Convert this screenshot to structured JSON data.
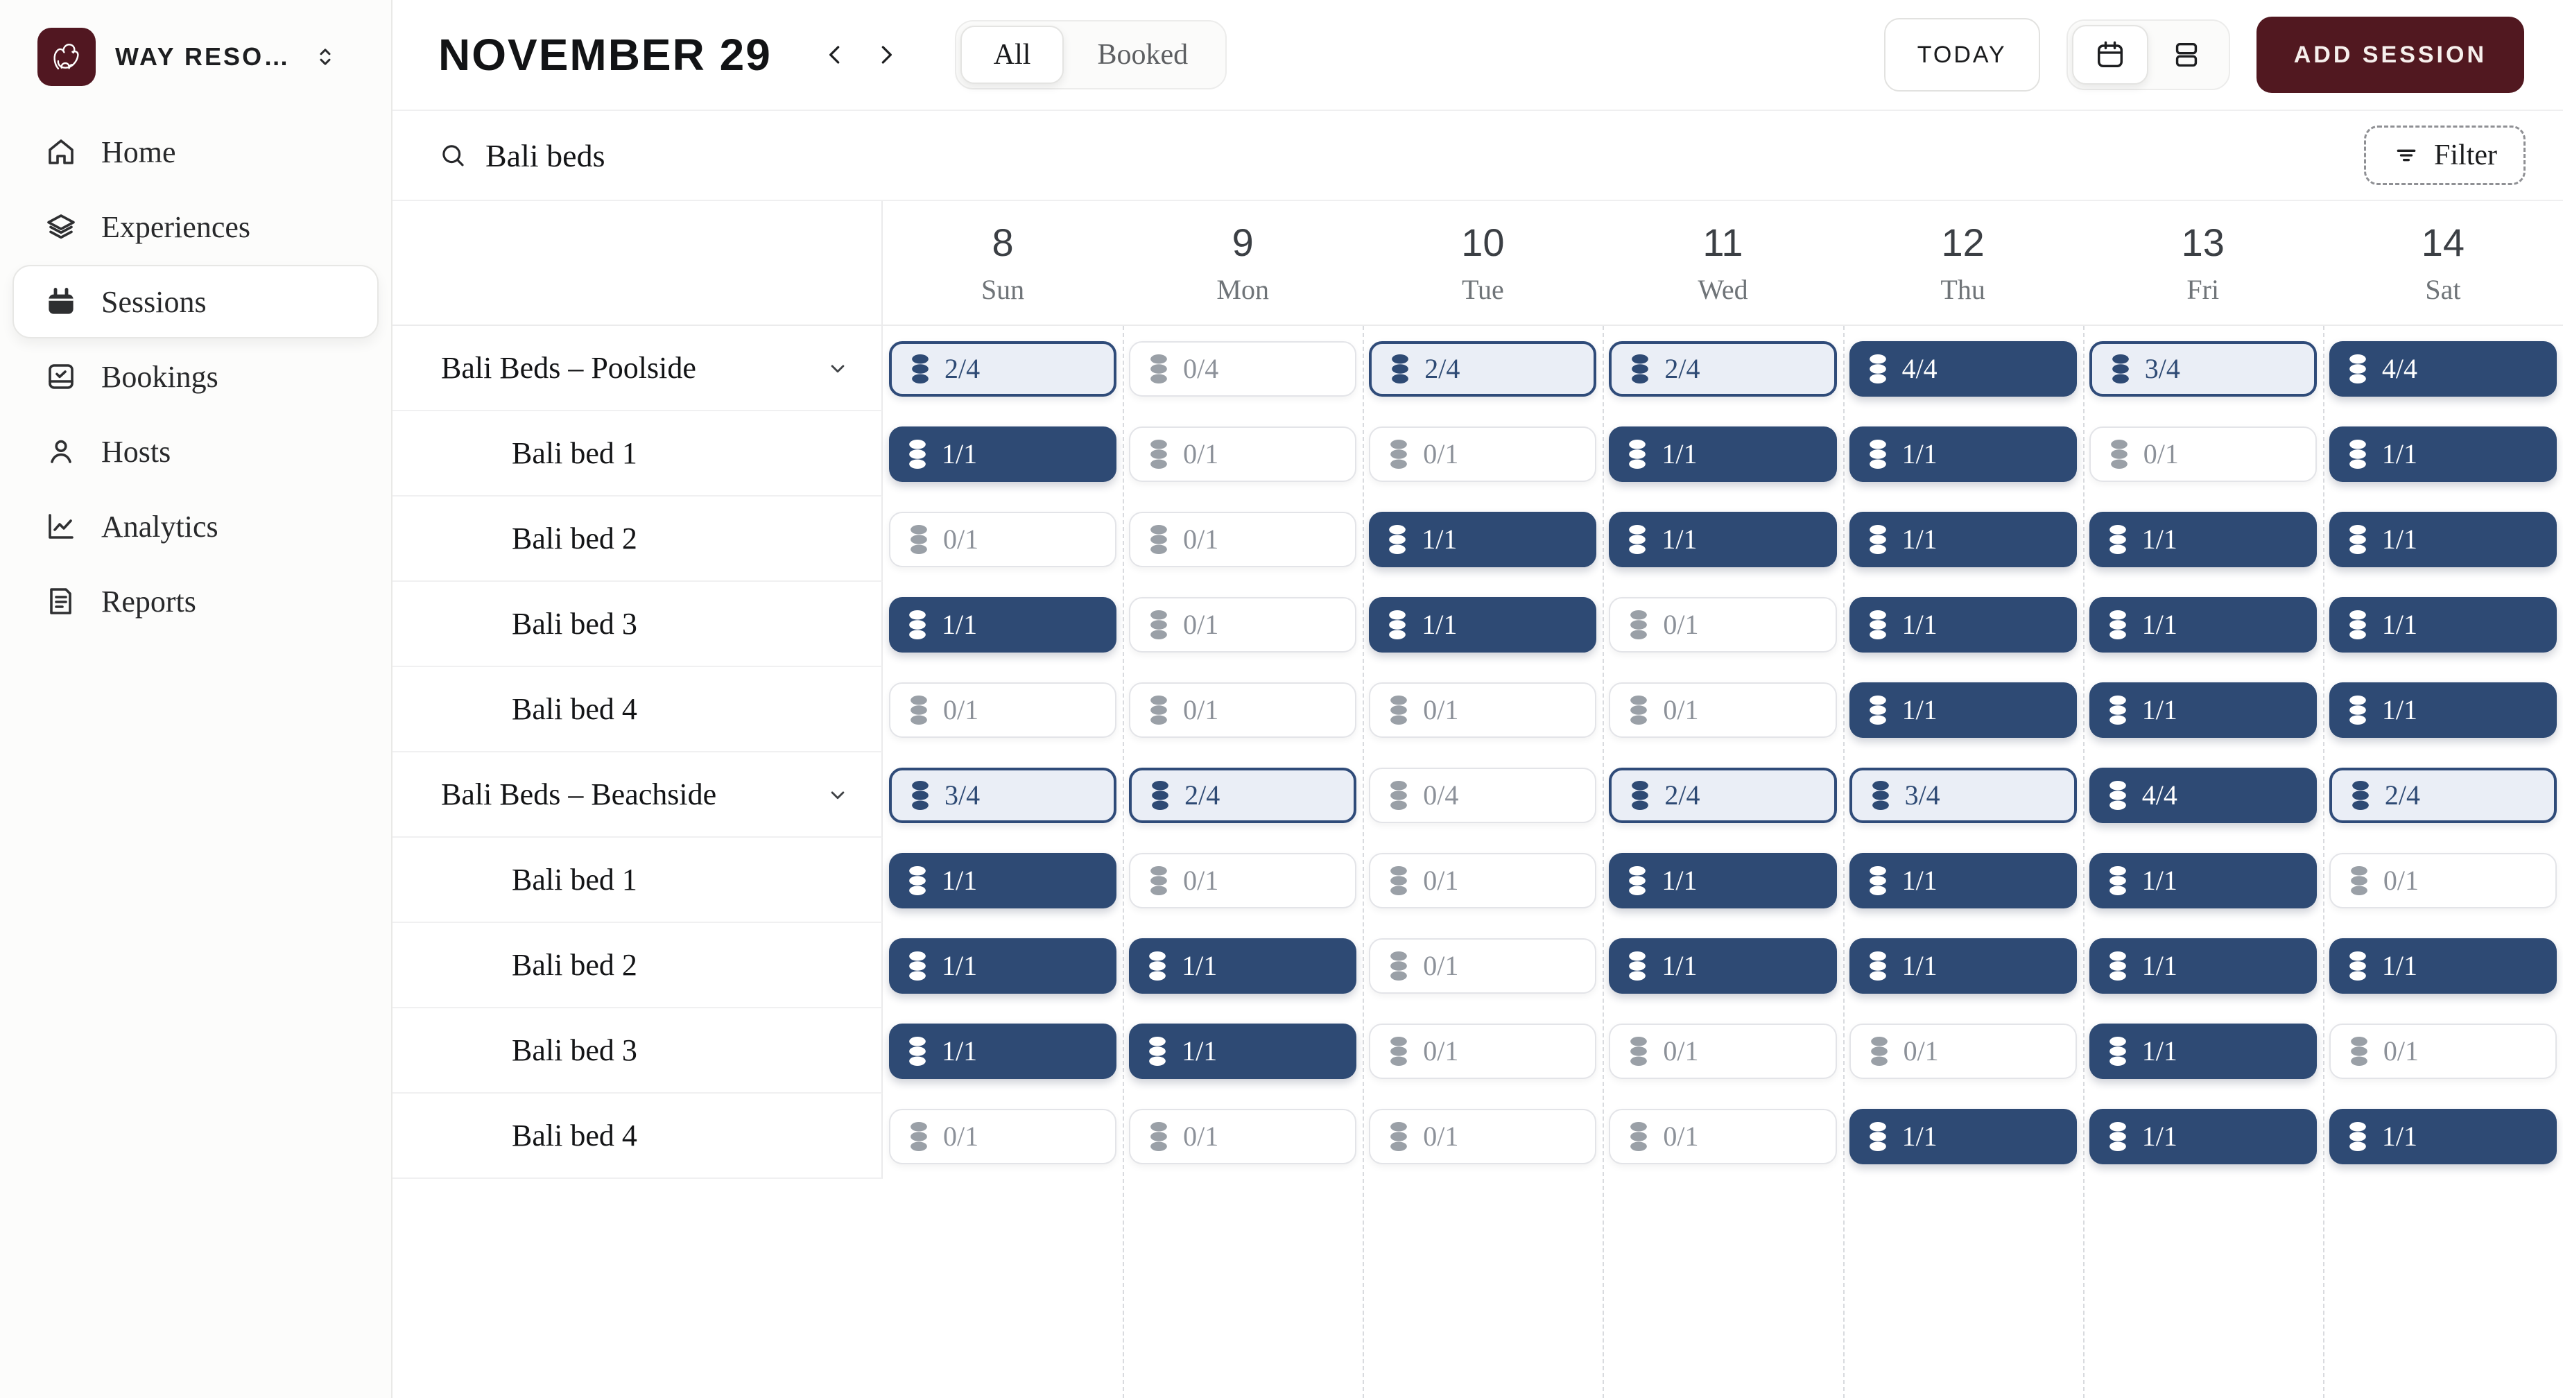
{
  "workspace": {
    "name": "WAY RESO…"
  },
  "sidebar": {
    "items": [
      {
        "label": "Home",
        "icon": "home",
        "active": false
      },
      {
        "label": "Experiences",
        "icon": "layers",
        "active": false
      },
      {
        "label": "Sessions",
        "icon": "calendar",
        "active": true
      },
      {
        "label": "Bookings",
        "icon": "bookings",
        "active": false
      },
      {
        "label": "Hosts",
        "icon": "user",
        "active": false
      },
      {
        "label": "Analytics",
        "icon": "analytics",
        "active": false
      },
      {
        "label": "Reports",
        "icon": "reports",
        "active": false
      }
    ]
  },
  "header": {
    "title": "NOVEMBER 29",
    "tabs": [
      {
        "label": "All",
        "active": true
      },
      {
        "label": "Booked",
        "active": false
      }
    ],
    "today_label": "TODAY",
    "view_toggle": {
      "options": [
        "calendar-view",
        "list-view"
      ],
      "active": "calendar-view"
    },
    "add_session_label": "ADD SESSION"
  },
  "search": {
    "value": "Bali beds",
    "filter_label": "Filter"
  },
  "calendar": {
    "days": [
      {
        "num": "8",
        "name": "Sun"
      },
      {
        "num": "9",
        "name": "Mon"
      },
      {
        "num": "10",
        "name": "Tue"
      },
      {
        "num": "11",
        "name": "Wed"
      },
      {
        "num": "12",
        "name": "Thu"
      },
      {
        "num": "13",
        "name": "Fri"
      },
      {
        "num": "14",
        "name": "Sat"
      }
    ]
  },
  "grid": {
    "rows": [
      {
        "type": "group",
        "label": "Bali Beds – Poolside",
        "cells": [
          {
            "text": "2/4",
            "state": "partial"
          },
          {
            "text": "0/4",
            "state": "empty"
          },
          {
            "text": "2/4",
            "state": "partial"
          },
          {
            "text": "2/4",
            "state": "partial"
          },
          {
            "text": "4/4",
            "state": "full"
          },
          {
            "text": "3/4",
            "state": "partial"
          },
          {
            "text": "4/4",
            "state": "full"
          }
        ]
      },
      {
        "type": "item",
        "label": "Bali bed 1",
        "cells": [
          {
            "text": "1/1",
            "state": "full"
          },
          {
            "text": "0/1",
            "state": "empty"
          },
          {
            "text": "0/1",
            "state": "empty"
          },
          {
            "text": "1/1",
            "state": "full"
          },
          {
            "text": "1/1",
            "state": "full"
          },
          {
            "text": "0/1",
            "state": "empty"
          },
          {
            "text": "1/1",
            "state": "full"
          }
        ]
      },
      {
        "type": "item",
        "label": "Bali bed 2",
        "cells": [
          {
            "text": "0/1",
            "state": "empty"
          },
          {
            "text": "0/1",
            "state": "empty"
          },
          {
            "text": "1/1",
            "state": "full"
          },
          {
            "text": "1/1",
            "state": "full"
          },
          {
            "text": "1/1",
            "state": "full"
          },
          {
            "text": "1/1",
            "state": "full"
          },
          {
            "text": "1/1",
            "state": "full"
          }
        ]
      },
      {
        "type": "item",
        "label": "Bali bed 3",
        "cells": [
          {
            "text": "1/1",
            "state": "full"
          },
          {
            "text": "0/1",
            "state": "empty"
          },
          {
            "text": "1/1",
            "state": "full"
          },
          {
            "text": "0/1",
            "state": "empty"
          },
          {
            "text": "1/1",
            "state": "full"
          },
          {
            "text": "1/1",
            "state": "full"
          },
          {
            "text": "1/1",
            "state": "full"
          }
        ]
      },
      {
        "type": "item",
        "label": "Bali bed 4",
        "cells": [
          {
            "text": "0/1",
            "state": "empty"
          },
          {
            "text": "0/1",
            "state": "empty"
          },
          {
            "text": "0/1",
            "state": "empty"
          },
          {
            "text": "0/1",
            "state": "empty"
          },
          {
            "text": "1/1",
            "state": "full"
          },
          {
            "text": "1/1",
            "state": "full"
          },
          {
            "text": "1/1",
            "state": "full"
          }
        ]
      },
      {
        "type": "group",
        "label": "Bali Beds – Beachside",
        "cells": [
          {
            "text": "3/4",
            "state": "partial"
          },
          {
            "text": "2/4",
            "state": "partial"
          },
          {
            "text": "0/4",
            "state": "empty"
          },
          {
            "text": "2/4",
            "state": "partial"
          },
          {
            "text": "3/4",
            "state": "partial"
          },
          {
            "text": "4/4",
            "state": "full"
          },
          {
            "text": "2/4",
            "state": "partial"
          }
        ]
      },
      {
        "type": "item",
        "label": "Bali bed 1",
        "cells": [
          {
            "text": "1/1",
            "state": "full"
          },
          {
            "text": "0/1",
            "state": "empty"
          },
          {
            "text": "0/1",
            "state": "empty"
          },
          {
            "text": "1/1",
            "state": "full"
          },
          {
            "text": "1/1",
            "state": "full"
          },
          {
            "text": "1/1",
            "state": "full"
          },
          {
            "text": "0/1",
            "state": "empty"
          }
        ]
      },
      {
        "type": "item",
        "label": "Bali bed 2",
        "cells": [
          {
            "text": "1/1",
            "state": "full"
          },
          {
            "text": "1/1",
            "state": "full"
          },
          {
            "text": "0/1",
            "state": "empty"
          },
          {
            "text": "1/1",
            "state": "full"
          },
          {
            "text": "1/1",
            "state": "full"
          },
          {
            "text": "1/1",
            "state": "full"
          },
          {
            "text": "1/1",
            "state": "full"
          }
        ]
      },
      {
        "type": "item",
        "label": "Bali bed 3",
        "cells": [
          {
            "text": "1/1",
            "state": "full"
          },
          {
            "text": "1/1",
            "state": "full"
          },
          {
            "text": "0/1",
            "state": "empty"
          },
          {
            "text": "0/1",
            "state": "empty"
          },
          {
            "text": "0/1",
            "state": "empty"
          },
          {
            "text": "1/1",
            "state": "full"
          },
          {
            "text": "0/1",
            "state": "empty"
          }
        ]
      },
      {
        "type": "item",
        "label": "Bali bed 4",
        "cells": [
          {
            "text": "0/1",
            "state": "empty"
          },
          {
            "text": "0/1",
            "state": "empty"
          },
          {
            "text": "0/1",
            "state": "empty"
          },
          {
            "text": "0/1",
            "state": "empty"
          },
          {
            "text": "1/1",
            "state": "full"
          },
          {
            "text": "1/1",
            "state": "full"
          },
          {
            "text": "1/1",
            "state": "full"
          }
        ]
      }
    ]
  },
  "colors": {
    "accent_maroon": "#511820",
    "navy_full": "#2e4a74",
    "partial_bg": "#eaeef6",
    "partial_border": "#2f4b79",
    "empty_text": "#8c9199"
  }
}
